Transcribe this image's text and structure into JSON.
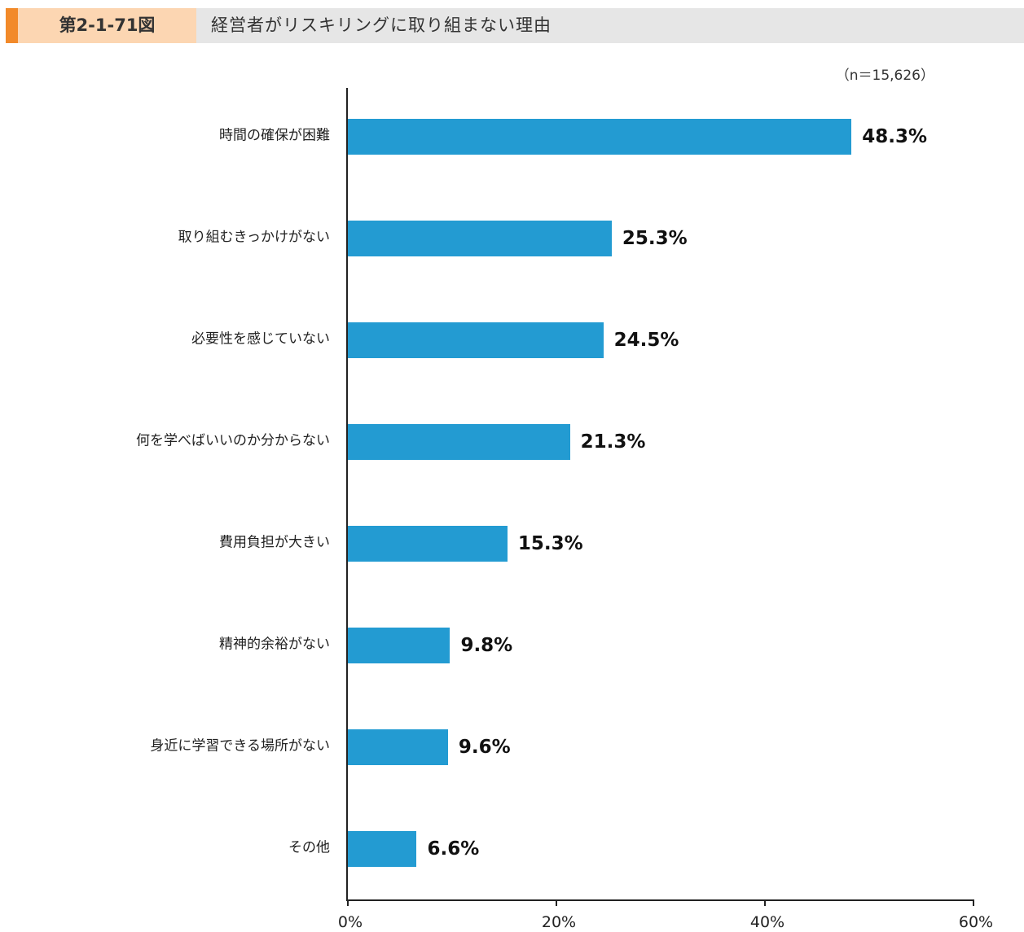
{
  "header": {
    "figure_number": "第2-1-71図",
    "title": "経営者がリスキリングに取り組まない理由"
  },
  "note": "（n＝15,626）",
  "colors": {
    "bar": "#239bd2",
    "header_accent": "#f28a2a",
    "header_figno_bg": "#fcd6b2",
    "header_bg": "#e6e6e6"
  },
  "chart_data": {
    "type": "bar",
    "orientation": "horizontal",
    "title": "経営者がリスキリングに取り組まない理由",
    "subtitle": "（n＝15,626）",
    "categories": [
      "時間の確保が困難",
      "取り組むきっかけがない",
      "必要性を感じていない",
      "何を学べばいいのか分からない",
      "費用負担が大きい",
      "精神的余裕がない",
      "身近に学習できる場所がない",
      "その他"
    ],
    "values": [
      48.3,
      25.3,
      24.5,
      21.3,
      15.3,
      9.8,
      9.6,
      6.6
    ],
    "value_labels": [
      "48.3%",
      "25.3%",
      "24.5%",
      "21.3%",
      "15.3%",
      "9.8%",
      "9.6%",
      "6.6%"
    ],
    "xlabel": "",
    "ylabel": "",
    "xlim": [
      0,
      60
    ],
    "xticks": [
      "0%",
      "20%",
      "40%",
      "60%"
    ],
    "grid": false,
    "legend": null
  }
}
